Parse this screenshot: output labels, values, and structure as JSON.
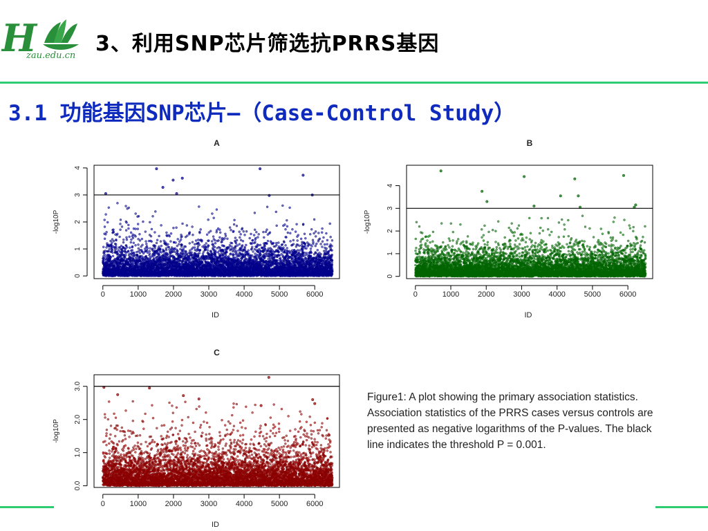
{
  "slide": {
    "title": "3、利用SNP芯片筛选抗PRRS基因",
    "subtitle": "3.1 功能基因SNP芯片—（Case-Control Study）",
    "logo_text": "zau.edu.cn"
  },
  "caption": "Figure1: A plot showing the primary association statistics.  Association statistics of the PRRS cases versus controls are presented as negative logarithms of the P-values. The black line indicates the threshold P = 0.001.",
  "colors": {
    "accent_green": "#2ecc71",
    "subtitle_blue": "#0e2bbd",
    "panel_a": "#00008b",
    "panel_b": "#006400",
    "panel_c": "#8b0000"
  },
  "chart_data": [
    {
      "type": "scatter",
      "title": "A",
      "xlabel": "ID",
      "ylabel": "-log10P",
      "xlim": [
        -250,
        6700
      ],
      "ylim": [
        -0.1,
        4.1
      ],
      "xticks": [
        0,
        1000,
        2000,
        3000,
        4000,
        5000,
        6000
      ],
      "yticks": [
        0,
        1,
        2,
        3,
        4
      ],
      "ytick_labels": [
        "0",
        "1",
        "2",
        "3",
        "4"
      ],
      "threshold": 3.0,
      "color": "#00008b",
      "n_snps": 6500,
      "highlighted_points": [
        [
          80,
          3.05
        ],
        [
          1520,
          3.97
        ],
        [
          1700,
          3.28
        ],
        [
          1990,
          3.55
        ],
        [
          2090,
          3.05
        ],
        [
          2250,
          3.62
        ],
        [
          4450,
          3.97
        ],
        [
          4710,
          2.98
        ],
        [
          5670,
          3.73
        ],
        [
          5930,
          3.0
        ]
      ]
    },
    {
      "type": "scatter",
      "title": "B",
      "xlabel": "ID",
      "ylabel": "-log10P",
      "xlim": [
        -250,
        6700
      ],
      "ylim": [
        -0.1,
        4.9
      ],
      "xticks": [
        0,
        1000,
        2000,
        3000,
        4000,
        5000,
        6000
      ],
      "yticks": [
        0,
        1,
        2,
        3,
        4
      ],
      "ytick_labels": [
        "0",
        "1",
        "2",
        "3",
        "4"
      ],
      "threshold": 3.0,
      "color": "#006400",
      "n_snps": 6500,
      "highlighted_points": [
        [
          720,
          4.65
        ],
        [
          1880,
          3.75
        ],
        [
          2020,
          3.3
        ],
        [
          3070,
          4.4
        ],
        [
          3350,
          3.1
        ],
        [
          4100,
          3.55
        ],
        [
          4500,
          4.3
        ],
        [
          4600,
          3.55
        ],
        [
          4650,
          3.05
        ],
        [
          5880,
          4.45
        ],
        [
          6180,
          3.05
        ],
        [
          6220,
          3.15
        ]
      ]
    },
    {
      "type": "scatter",
      "title": "C",
      "xlabel": "ID",
      "ylabel": "-log10P",
      "xlim": [
        -250,
        6700
      ],
      "ylim": [
        -0.05,
        3.35
      ],
      "xticks": [
        0,
        1000,
        2000,
        3000,
        4000,
        5000,
        6000
      ],
      "yticks": [
        0.0,
        1.0,
        2.0,
        3.0
      ],
      "ytick_labels": [
        "0.0",
        "1.0",
        "2.0",
        "3.0"
      ],
      "threshold": 3.0,
      "color": "#8b0000",
      "n_snps": 6500,
      "highlighted_points": [
        [
          30,
          2.97
        ],
        [
          420,
          2.75
        ],
        [
          1320,
          2.95
        ],
        [
          2280,
          2.72
        ],
        [
          2720,
          2.62
        ],
        [
          4700,
          3.27
        ],
        [
          4480,
          2.42
        ],
        [
          5940,
          2.6
        ],
        [
          6000,
          2.48
        ]
      ]
    }
  ]
}
